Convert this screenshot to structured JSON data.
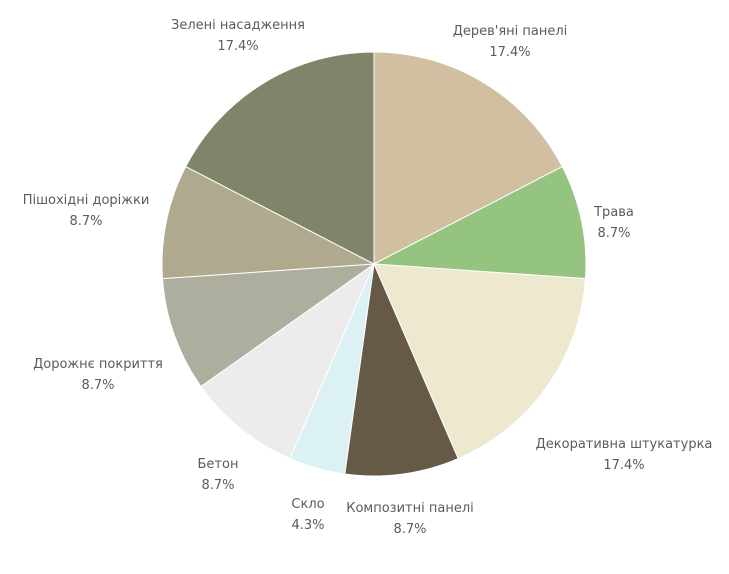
{
  "chart_data": {
    "type": "pie",
    "start_angle_deg": 0,
    "direction": "clockwise",
    "slices": [
      {
        "label": "Дерев'яні панелі",
        "value": 17.4,
        "value_label": "17.4%",
        "color": "#d0bfa1"
      },
      {
        "label": "Трава",
        "value": 8.7,
        "value_label": "8.7%",
        "color": "#95c480"
      },
      {
        "label": "Декоративна штукатурка",
        "value": 17.4,
        "value_label": "17.4%",
        "color": "#eee8cf"
      },
      {
        "label": "Композитні панелі",
        "value": 8.7,
        "value_label": "8.7%",
        "color": "#665945"
      },
      {
        "label": "Скло",
        "value": 4.3,
        "value_label": "4.3%",
        "color": "#dcf1f3"
      },
      {
        "label": "Бетон",
        "value": 8.7,
        "value_label": "8.7%",
        "color": "#ececec"
      },
      {
        "label": "Дорожнє покриття",
        "value": 8.7,
        "value_label": "8.7%",
        "color": "#aeae9e"
      },
      {
        "label": "Пішохідні доріжки",
        "value": 8.7,
        "value_label": "8.7%",
        "color": "#afaa8e"
      },
      {
        "label": "Зелені насадження",
        "value": 17.4,
        "value_label": "17.4%",
        "color": "#7e8568"
      }
    ]
  }
}
